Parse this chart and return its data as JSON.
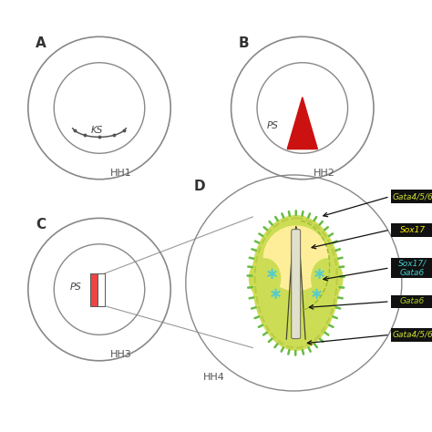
{
  "fig_width": 4.74,
  "fig_height": 4.74,
  "dpi": 100,
  "background_color": "#ffffff",
  "circle_color": "#888888",
  "label_color": "#444444",
  "ks_label": "KS",
  "ps_label": "PS",
  "triangle_color": "#cc1111",
  "rect_red_color": "#ee4444",
  "rect_white_color": "#ffffff",
  "gene_labels": [
    "Gata4/5/6",
    "Sox17",
    "Sox17/\nGata6",
    "Gata6",
    "Gata4/5/6"
  ],
  "gene_text_colors": [
    "#ccdd33",
    "#ffee00",
    "#44cccc",
    "#aacc22",
    "#ccdd33"
  ],
  "gene_bg_color": "#111111",
  "arrow_color": "#111111",
  "embryo_green_color": "#bbcc44",
  "embryo_ltgreen_color": "#ccdd55",
  "embryo_yellow_color": "#ffee99",
  "cyan_color": "#55cccc",
  "border_spike_color": "#66bb44"
}
